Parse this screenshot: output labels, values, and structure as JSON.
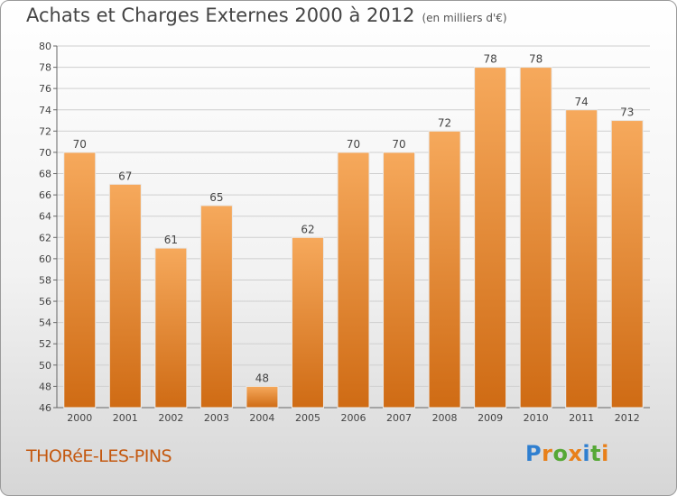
{
  "title": "Achats et Charges Externes 2000 à 2012",
  "subtitle": "(en milliers d'€)",
  "commune": "THORéE-LES-PINS",
  "brand": {
    "letters": [
      "P",
      "r",
      "o",
      "x",
      "i",
      "t",
      "i"
    ],
    "colors": [
      "#2f7fd0",
      "#e8801a",
      "#56a836",
      "#e8801a",
      "#2f7fd0",
      "#56a836",
      "#e8801a"
    ]
  },
  "colors": {
    "bar_top": "#f6a95c",
    "bar_bottom": "#cf6b14",
    "label": "#444444",
    "grid": "#cfcfcf"
  },
  "chart_data": {
    "type": "bar",
    "categories": [
      "2000",
      "2001",
      "2002",
      "2003",
      "2004",
      "2005",
      "2006",
      "2007",
      "2008",
      "2009",
      "2010",
      "2011",
      "2012"
    ],
    "values": [
      70,
      67,
      61,
      65,
      48,
      62,
      70,
      70,
      72,
      78,
      78,
      74,
      73
    ],
    "title": "Achats et Charges Externes 2000 à 2012",
    "subtitle": "(en milliers d'€)",
    "xlabel": "",
    "ylabel": "",
    "ylim": [
      46,
      80
    ],
    "yticks": [
      46,
      48,
      50,
      52,
      54,
      56,
      58,
      60,
      62,
      64,
      66,
      68,
      70,
      72,
      74,
      76,
      78,
      80
    ],
    "grid": true,
    "data_labels": true
  }
}
